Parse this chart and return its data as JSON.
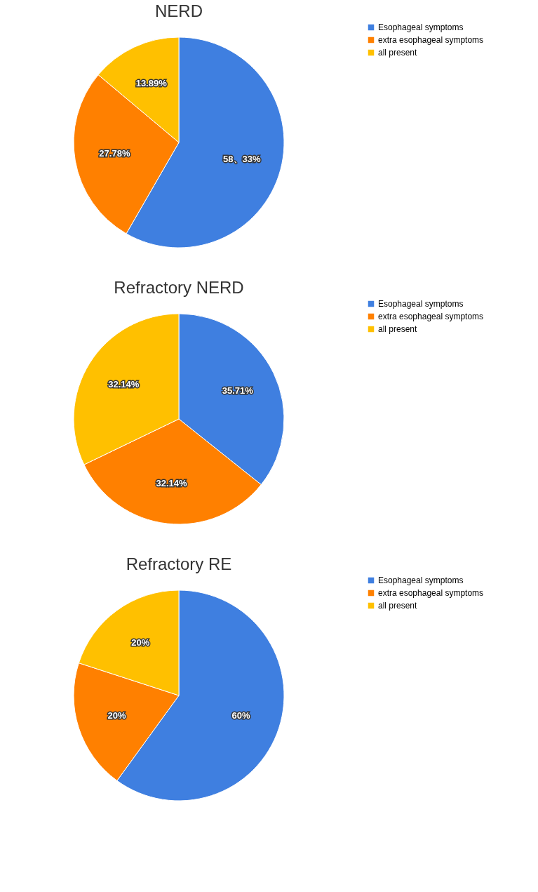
{
  "chart_data": [
    {
      "type": "pie",
      "title": "NERD",
      "categories": [
        "Esophageal symptoms",
        "extra esophageal symptoms",
        "all present"
      ],
      "values": [
        58.33,
        27.78,
        13.89
      ],
      "colors": [
        "#3f7fe0",
        "#ff8000",
        "#ffc000"
      ],
      "value_labels": [
        "58、33%",
        "27.78%",
        "13.89%"
      ],
      "legend": "right"
    },
    {
      "type": "pie",
      "title": "Refractory NERD",
      "categories": [
        "Esophageal symptoms",
        "extra esophageal symptoms",
        "all present"
      ],
      "values": [
        35.71,
        32.14,
        32.14
      ],
      "colors": [
        "#3f7fe0",
        "#ff8000",
        "#ffc000"
      ],
      "value_labels": [
        "35.71%",
        "32.14%",
        "32.14%"
      ],
      "legend": "right"
    },
    {
      "type": "pie",
      "title": "Refractory RE",
      "categories": [
        "Esophageal symptoms",
        "extra esophageal symptoms",
        "all present"
      ],
      "values": [
        60,
        20,
        20
      ],
      "colors": [
        "#3f7fe0",
        "#ff8000",
        "#ffc000"
      ],
      "value_labels": [
        "60%",
        "20%",
        "20%"
      ],
      "legend": "right"
    }
  ]
}
